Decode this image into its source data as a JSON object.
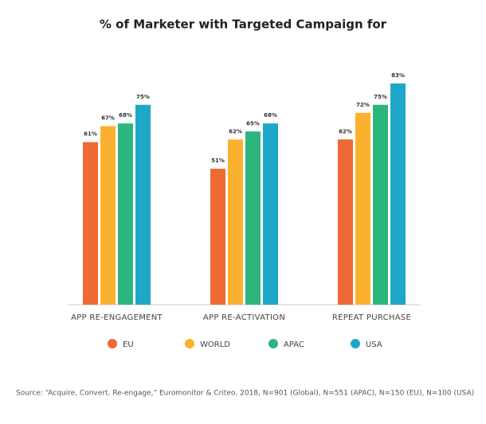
{
  "chart_data": {
    "type": "bar",
    "title": "% of Marketer with Targeted Campaign for",
    "categories": [
      "APP RE-ENGAGEMENT",
      "APP RE-ACTIVATION",
      "REPEAT PURCHASE"
    ],
    "series": [
      {
        "name": "EU",
        "color": "#ef6934",
        "values": [
          61,
          51,
          62
        ],
        "value_labels": [
          "61%",
          "51%",
          "62%"
        ]
      },
      {
        "name": "WORLD",
        "color": "#fbb130",
        "values": [
          67,
          62,
          72
        ],
        "value_labels": [
          "67%",
          "62%",
          "72%"
        ]
      },
      {
        "name": "APAC",
        "color": "#2db57e",
        "values": [
          68,
          65,
          75
        ],
        "value_labels": [
          "68%",
          "65%",
          "75%"
        ]
      },
      {
        "name": "USA",
        "color": "#1ea7c8",
        "values": [
          75,
          68,
          83
        ],
        "value_labels": [
          "75%",
          "68%",
          "83%"
        ]
      }
    ],
    "source": "Source: “Acquire, Convert, Re-engage,” Euromonitor & Criteo, 2018, N=901 (Global), N=551 (APAC), N=150 (EU), N=100 (USA)"
  }
}
